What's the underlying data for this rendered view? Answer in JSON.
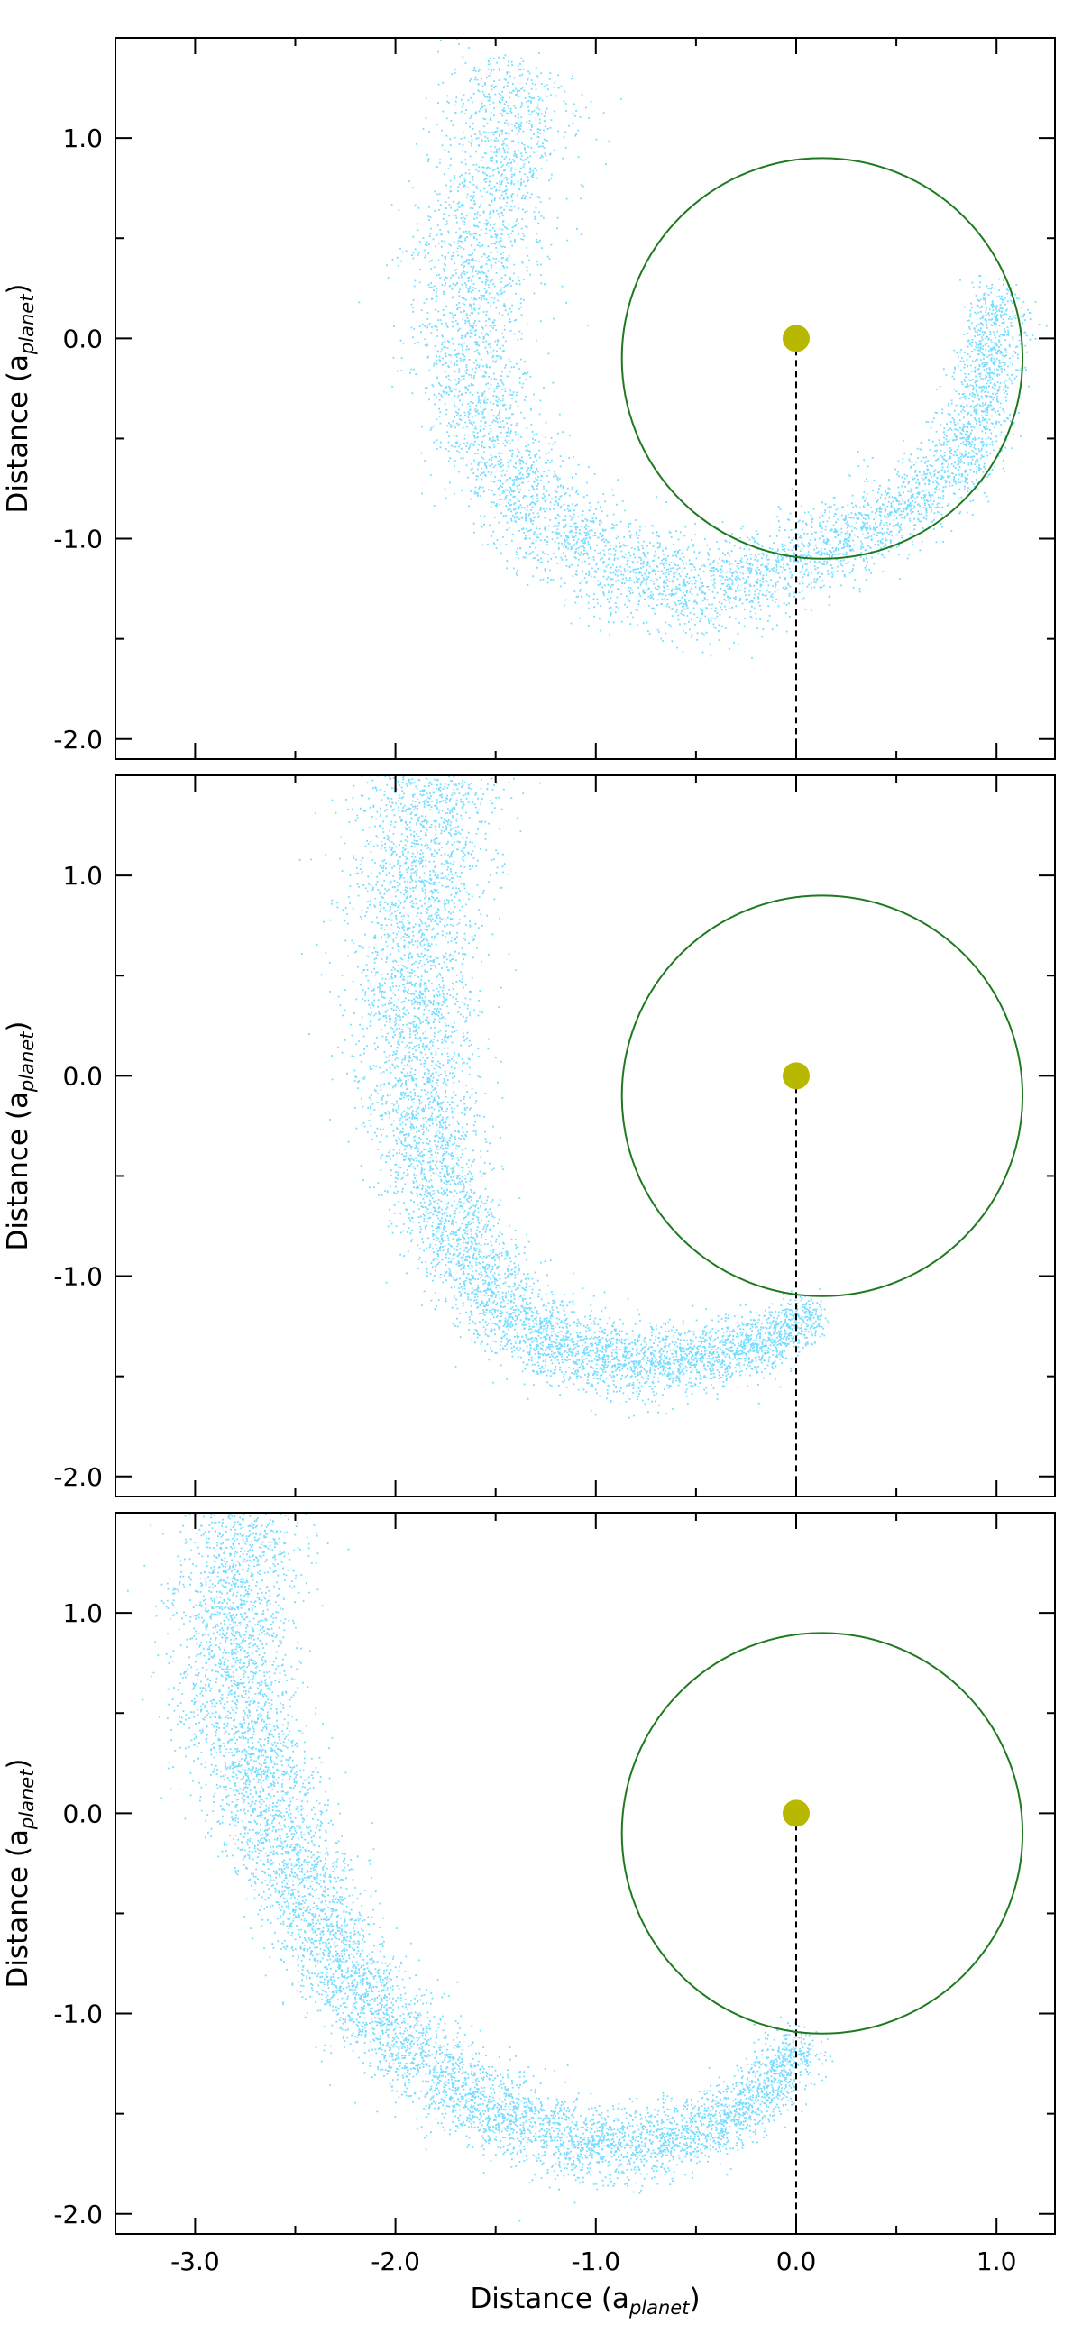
{
  "chart_data": [
    {
      "type": "scatter",
      "panel": "top",
      "xlabel": "Distance (a",
      "xlabel_sub": "planet",
      "xlabel_close": ")",
      "ylabel": "Distance (a",
      "ylabel_sub": "planet",
      "ylabel_close": ")",
      "xlim": [
        -3.4,
        1.28
      ],
      "ylim": [
        -2.1,
        1.5
      ],
      "yticks": [
        1.0,
        0.0,
        -1.0,
        -2.0
      ],
      "ytick_labels": [
        "1.0",
        "0.0",
        "-1.0",
        "-2.0"
      ],
      "xticks": [
        -3.0,
        -2.0,
        -1.0,
        0.0,
        1.0
      ],
      "grid": false,
      "star": {
        "x": 0.0,
        "y": 0.0
      },
      "orbit": {
        "center_x": 0.13,
        "center_y": -0.1,
        "radius": 1.0
      },
      "dashed_line": {
        "x": 0.0,
        "y_from": 0.0,
        "y_to": -2.1
      },
      "particle_cloud": {
        "spine": [
          [
            1.02,
            0.25
          ],
          [
            0.9,
            -0.5
          ],
          [
            0.5,
            -0.88
          ],
          [
            0.05,
            -1.08
          ],
          [
            -0.3,
            -1.25
          ],
          [
            -0.7,
            -1.22
          ],
          [
            -1.1,
            -1.03
          ],
          [
            -1.45,
            -0.72
          ],
          [
            -1.62,
            -0.3
          ],
          [
            -1.65,
            0.25
          ],
          [
            -1.52,
            0.85
          ],
          [
            -1.35,
            1.35
          ]
        ],
        "width_min": 0.14,
        "width_max": 0.32,
        "density": 0.75
      }
    },
    {
      "type": "scatter",
      "panel": "middle",
      "xlabel": "",
      "ylabel": "Distance (a",
      "ylabel_sub": "planet",
      "ylabel_close": ")",
      "xlim": [
        -3.4,
        1.28
      ],
      "ylim": [
        -2.1,
        1.5
      ],
      "yticks": [
        1.0,
        0.0,
        -1.0,
        -2.0
      ],
      "ytick_labels": [
        "1.0",
        "0.0",
        "-1.0",
        "-2.0"
      ],
      "xticks": [
        -3.0,
        -2.0,
        -1.0,
        0.0,
        1.0
      ],
      "grid": false,
      "star": {
        "x": 0.0,
        "y": 0.0
      },
      "orbit": {
        "center_x": 0.13,
        "center_y": -0.1,
        "radius": 1.0
      },
      "dashed_line": {
        "x": 0.0,
        "y_from": 0.0,
        "y_to": -2.1
      },
      "particle_cloud": {
        "spine": [
          [
            0.1,
            -1.17
          ],
          [
            -0.1,
            -1.3
          ],
          [
            -0.5,
            -1.42
          ],
          [
            -0.9,
            -1.43
          ],
          [
            -1.3,
            -1.3
          ],
          [
            -1.6,
            -1.0
          ],
          [
            -1.8,
            -0.55
          ],
          [
            -1.9,
            0.0
          ],
          [
            -1.92,
            0.55
          ],
          [
            -1.88,
            1.1
          ],
          [
            -1.8,
            1.55
          ]
        ],
        "width_min": 0.12,
        "width_max": 0.34,
        "density": 1.0
      }
    },
    {
      "type": "scatter",
      "panel": "bottom",
      "xlabel": "Distance (a",
      "xlabel_sub": "planet",
      "xlabel_close": ")",
      "ylabel": "Distance (a",
      "ylabel_sub": "planet",
      "ylabel_close": ")",
      "xlim": [
        -3.4,
        1.28
      ],
      "ylim": [
        -2.1,
        1.5
      ],
      "yticks": [
        1.0,
        0.0,
        -1.0,
        -2.0
      ],
      "ytick_labels": [
        "1.0",
        "0.0",
        "-1.0",
        "-2.0"
      ],
      "xticks": [
        -3.0,
        -2.0,
        -1.0,
        0.0,
        1.0
      ],
      "xtick_labels": [
        "-3.0",
        "-2.0",
        "-1.0",
        "0.0",
        "1.0"
      ],
      "grid": false,
      "star": {
        "x": 0.0,
        "y": 0.0
      },
      "orbit": {
        "center_x": 0.13,
        "center_y": -0.1,
        "radius": 1.0
      },
      "dashed_line": {
        "x": 0.0,
        "y_from": 0.0,
        "y_to": -2.1
      },
      "particle_cloud": {
        "spine": [
          [
            0.02,
            -1.12
          ],
          [
            -0.2,
            -1.45
          ],
          [
            -0.6,
            -1.62
          ],
          [
            -1.0,
            -1.68
          ],
          [
            -1.4,
            -1.55
          ],
          [
            -1.8,
            -1.3
          ],
          [
            -2.2,
            -0.9
          ],
          [
            -2.5,
            -0.3
          ],
          [
            -2.75,
            0.3
          ],
          [
            -2.85,
            0.9
          ],
          [
            -2.75,
            1.5
          ]
        ],
        "width_min": 0.14,
        "width_max": 0.3,
        "density": 1.0
      }
    }
  ],
  "colors": {
    "particles": "#00bfff",
    "star": "#b8b800",
    "orbit": "#1f7a1f",
    "dashed_line": "#000000",
    "axes": "#000000"
  }
}
